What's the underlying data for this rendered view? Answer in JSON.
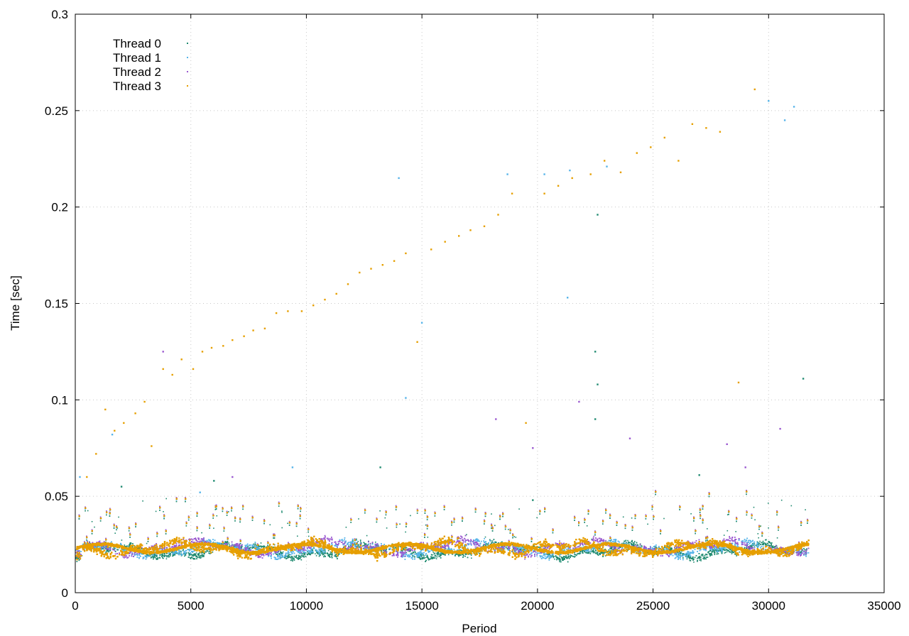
{
  "chart_data": {
    "type": "scatter",
    "xlabel": "Period",
    "ylabel": "Time [sec]",
    "xlim": [
      0,
      35000
    ],
    "ylim": [
      0,
      0.3
    ],
    "x_ticks": [
      "0",
      "5000",
      "10000",
      "15000",
      "20000",
      "25000",
      "30000",
      "35000"
    ],
    "y_ticks": [
      "0",
      "0.05",
      "0.1",
      "0.15",
      "0.2",
      "0.25",
      "0.3"
    ],
    "grid": true,
    "legend_position": "top-left",
    "x_data_max": 31700,
    "series": [
      {
        "name": "Thread 0",
        "color": "#1f8a70",
        "typical_value": 0.022,
        "points": [
          [
            2000,
            0.055
          ],
          [
            6000,
            0.058
          ],
          [
            13200,
            0.065
          ],
          [
            19800,
            0.048
          ],
          [
            22500,
            0.125
          ],
          [
            22500,
            0.09
          ],
          [
            22600,
            0.196
          ],
          [
            22600,
            0.108
          ],
          [
            27000,
            0.061
          ],
          [
            31500,
            0.111
          ]
        ]
      },
      {
        "name": "Thread 1",
        "color": "#56b4e9",
        "typical_value": 0.023,
        "points": [
          [
            200,
            0.06
          ],
          [
            1600,
            0.082
          ],
          [
            5400,
            0.052
          ],
          [
            9400,
            0.065
          ],
          [
            14000,
            0.215
          ],
          [
            14300,
            0.101
          ],
          [
            15000,
            0.14
          ],
          [
            18700,
            0.217
          ],
          [
            20300,
            0.217
          ],
          [
            21300,
            0.153
          ],
          [
            21400,
            0.219
          ],
          [
            23000,
            0.221
          ],
          [
            30000,
            0.255
          ],
          [
            30700,
            0.245
          ],
          [
            31100,
            0.252
          ]
        ]
      },
      {
        "name": "Thread 2",
        "color": "#9b59d0",
        "typical_value": 0.024,
        "points": [
          [
            3800,
            0.125
          ],
          [
            6800,
            0.06
          ],
          [
            18200,
            0.09
          ],
          [
            19800,
            0.075
          ],
          [
            21800,
            0.099
          ],
          [
            24000,
            0.08
          ],
          [
            28200,
            0.077
          ],
          [
            29000,
            0.065
          ],
          [
            30500,
            0.085
          ]
        ]
      },
      {
        "name": "Thread 3",
        "color": "#e69f00",
        "typical_value": 0.0235,
        "points": [
          [
            500,
            0.06
          ],
          [
            900,
            0.072
          ],
          [
            1300,
            0.095
          ],
          [
            1700,
            0.084
          ],
          [
            2100,
            0.088
          ],
          [
            2600,
            0.093
          ],
          [
            3000,
            0.099
          ],
          [
            3300,
            0.076
          ],
          [
            3800,
            0.116
          ],
          [
            4200,
            0.113
          ],
          [
            4600,
            0.121
          ],
          [
            5100,
            0.116
          ],
          [
            5500,
            0.125
          ],
          [
            5900,
            0.127
          ],
          [
            6400,
            0.128
          ],
          [
            6800,
            0.131
          ],
          [
            7300,
            0.133
          ],
          [
            7700,
            0.136
          ],
          [
            8200,
            0.137
          ],
          [
            8700,
            0.145
          ],
          [
            9200,
            0.146
          ],
          [
            9800,
            0.146
          ],
          [
            10300,
            0.149
          ],
          [
            10800,
            0.152
          ],
          [
            11300,
            0.155
          ],
          [
            11800,
            0.16
          ],
          [
            12300,
            0.166
          ],
          [
            12800,
            0.168
          ],
          [
            13300,
            0.17
          ],
          [
            13800,
            0.172
          ],
          [
            14300,
            0.176
          ],
          [
            14800,
            0.13
          ],
          [
            15400,
            0.178
          ],
          [
            16000,
            0.182
          ],
          [
            16600,
            0.185
          ],
          [
            17100,
            0.188
          ],
          [
            17700,
            0.19
          ],
          [
            18300,
            0.196
          ],
          [
            18900,
            0.207
          ],
          [
            19500,
            0.088
          ],
          [
            20300,
            0.207
          ],
          [
            20900,
            0.211
          ],
          [
            21500,
            0.215
          ],
          [
            22300,
            0.217
          ],
          [
            22900,
            0.224
          ],
          [
            23600,
            0.218
          ],
          [
            24300,
            0.228
          ],
          [
            24900,
            0.231
          ],
          [
            25500,
            0.236
          ],
          [
            26100,
            0.224
          ],
          [
            26700,
            0.243
          ],
          [
            27300,
            0.241
          ],
          [
            27900,
            0.239
          ],
          [
            28700,
            0.109
          ],
          [
            29400,
            0.261
          ]
        ]
      }
    ]
  }
}
